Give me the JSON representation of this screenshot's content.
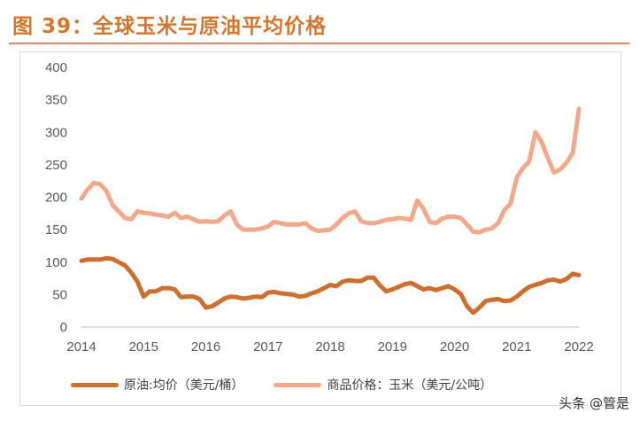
{
  "figure": {
    "title": "图 39：全球玉米与原油平均价格",
    "watermark": "头条 @管是"
  },
  "colors": {
    "title": "#D9742B",
    "oil": "#D26E2C",
    "corn": "#F2A889",
    "axis": "#BFBFBF",
    "frame": "#D9D9D9"
  },
  "chart_data": {
    "type": "line",
    "title": "全球玉米与原油平均价格",
    "xlabel": "",
    "ylabel": "",
    "xlim": [
      2014.0,
      2022.0
    ],
    "ylim": [
      0,
      400
    ],
    "yticks": [
      0,
      50,
      100,
      150,
      200,
      250,
      300,
      350,
      400
    ],
    "xticks": [
      2014,
      2015,
      2016,
      2017,
      2018,
      2019,
      2020,
      2021,
      2022
    ],
    "grid": false,
    "legend_position": "bottom",
    "series": [
      {
        "name": "原油:均价（美元/桶）",
        "color": "#D26E2C",
        "points": [
          [
            2014.0,
            102
          ],
          [
            2014.1,
            104
          ],
          [
            2014.2,
            104
          ],
          [
            2014.3,
            104
          ],
          [
            2014.4,
            106
          ],
          [
            2014.5,
            105
          ],
          [
            2014.6,
            100
          ],
          [
            2014.7,
            95
          ],
          [
            2014.8,
            84
          ],
          [
            2014.9,
            70
          ],
          [
            2015.0,
            47
          ],
          [
            2015.1,
            55
          ],
          [
            2015.2,
            55
          ],
          [
            2015.3,
            60
          ],
          [
            2015.4,
            60
          ],
          [
            2015.5,
            58
          ],
          [
            2015.6,
            46
          ],
          [
            2015.7,
            47
          ],
          [
            2015.8,
            47
          ],
          [
            2015.9,
            43
          ],
          [
            2016.0,
            30
          ],
          [
            2016.1,
            32
          ],
          [
            2016.2,
            38
          ],
          [
            2016.3,
            44
          ],
          [
            2016.4,
            47
          ],
          [
            2016.5,
            46
          ],
          [
            2016.6,
            44
          ],
          [
            2016.7,
            45
          ],
          [
            2016.8,
            47
          ],
          [
            2016.9,
            46
          ],
          [
            2017.0,
            53
          ],
          [
            2017.1,
            54
          ],
          [
            2017.2,
            52
          ],
          [
            2017.3,
            51
          ],
          [
            2017.4,
            50
          ],
          [
            2017.5,
            47
          ],
          [
            2017.6,
            48
          ],
          [
            2017.7,
            52
          ],
          [
            2017.8,
            55
          ],
          [
            2017.9,
            60
          ],
          [
            2018.0,
            65
          ],
          [
            2018.1,
            63
          ],
          [
            2018.2,
            70
          ],
          [
            2018.3,
            72
          ],
          [
            2018.4,
            71
          ],
          [
            2018.5,
            71
          ],
          [
            2018.6,
            76
          ],
          [
            2018.7,
            76
          ],
          [
            2018.8,
            64
          ],
          [
            2018.9,
            55
          ],
          [
            2019.0,
            58
          ],
          [
            2019.1,
            62
          ],
          [
            2019.2,
            66
          ],
          [
            2019.3,
            68
          ],
          [
            2019.4,
            63
          ],
          [
            2019.5,
            58
          ],
          [
            2019.6,
            60
          ],
          [
            2019.7,
            57
          ],
          [
            2019.8,
            60
          ],
          [
            2019.9,
            63
          ],
          [
            2020.0,
            58
          ],
          [
            2020.1,
            51
          ],
          [
            2020.2,
            32
          ],
          [
            2020.3,
            22
          ],
          [
            2020.4,
            30
          ],
          [
            2020.5,
            40
          ],
          [
            2020.6,
            42
          ],
          [
            2020.7,
            43
          ],
          [
            2020.8,
            40
          ],
          [
            2020.9,
            41
          ],
          [
            2021.0,
            47
          ],
          [
            2021.1,
            55
          ],
          [
            2021.2,
            62
          ],
          [
            2021.3,
            65
          ],
          [
            2021.4,
            68
          ],
          [
            2021.5,
            72
          ],
          [
            2021.6,
            73
          ],
          [
            2021.7,
            70
          ],
          [
            2021.8,
            74
          ],
          [
            2021.9,
            82
          ],
          [
            2022.0,
            80
          ]
        ]
      },
      {
        "name": "商品价格：玉米（美元/公吨）",
        "color": "#F2A889",
        "points": [
          [
            2014.0,
            198
          ],
          [
            2014.1,
            212
          ],
          [
            2014.2,
            222
          ],
          [
            2014.3,
            220
          ],
          [
            2014.4,
            210
          ],
          [
            2014.5,
            188
          ],
          [
            2014.6,
            178
          ],
          [
            2014.7,
            168
          ],
          [
            2014.8,
            166
          ],
          [
            2014.9,
            178
          ],
          [
            2015.0,
            176
          ],
          [
            2015.1,
            175
          ],
          [
            2015.2,
            173
          ],
          [
            2015.3,
            172
          ],
          [
            2015.4,
            170
          ],
          [
            2015.5,
            176
          ],
          [
            2015.6,
            168
          ],
          [
            2015.7,
            170
          ],
          [
            2015.8,
            166
          ],
          [
            2015.9,
            162
          ],
          [
            2016.0,
            163
          ],
          [
            2016.1,
            162
          ],
          [
            2016.2,
            163
          ],
          [
            2016.3,
            172
          ],
          [
            2016.4,
            178
          ],
          [
            2016.5,
            158
          ],
          [
            2016.6,
            150
          ],
          [
            2016.7,
            150
          ],
          [
            2016.8,
            150
          ],
          [
            2016.9,
            152
          ],
          [
            2017.0,
            155
          ],
          [
            2017.1,
            162
          ],
          [
            2017.2,
            160
          ],
          [
            2017.3,
            158
          ],
          [
            2017.4,
            158
          ],
          [
            2017.5,
            158
          ],
          [
            2017.6,
            160
          ],
          [
            2017.7,
            152
          ],
          [
            2017.8,
            148
          ],
          [
            2017.9,
            149
          ],
          [
            2018.0,
            150
          ],
          [
            2018.1,
            158
          ],
          [
            2018.2,
            168
          ],
          [
            2018.3,
            175
          ],
          [
            2018.4,
            178
          ],
          [
            2018.5,
            163
          ],
          [
            2018.6,
            160
          ],
          [
            2018.7,
            160
          ],
          [
            2018.8,
            162
          ],
          [
            2018.9,
            165
          ],
          [
            2019.0,
            166
          ],
          [
            2019.1,
            168
          ],
          [
            2019.2,
            167
          ],
          [
            2019.3,
            165
          ],
          [
            2019.4,
            195
          ],
          [
            2019.5,
            182
          ],
          [
            2019.6,
            162
          ],
          [
            2019.7,
            160
          ],
          [
            2019.8,
            167
          ],
          [
            2019.9,
            170
          ],
          [
            2020.0,
            170
          ],
          [
            2020.1,
            168
          ],
          [
            2020.2,
            158
          ],
          [
            2020.3,
            147
          ],
          [
            2020.4,
            146
          ],
          [
            2020.5,
            150
          ],
          [
            2020.6,
            152
          ],
          [
            2020.7,
            160
          ],
          [
            2020.8,
            180
          ],
          [
            2020.9,
            190
          ],
          [
            2021.0,
            230
          ],
          [
            2021.1,
            245
          ],
          [
            2021.2,
            255
          ],
          [
            2021.3,
            300
          ],
          [
            2021.4,
            285
          ],
          [
            2021.5,
            260
          ],
          [
            2021.6,
            238
          ],
          [
            2021.7,
            243
          ],
          [
            2021.8,
            253
          ],
          [
            2021.9,
            268
          ],
          [
            2022.0,
            336
          ]
        ]
      }
    ]
  }
}
